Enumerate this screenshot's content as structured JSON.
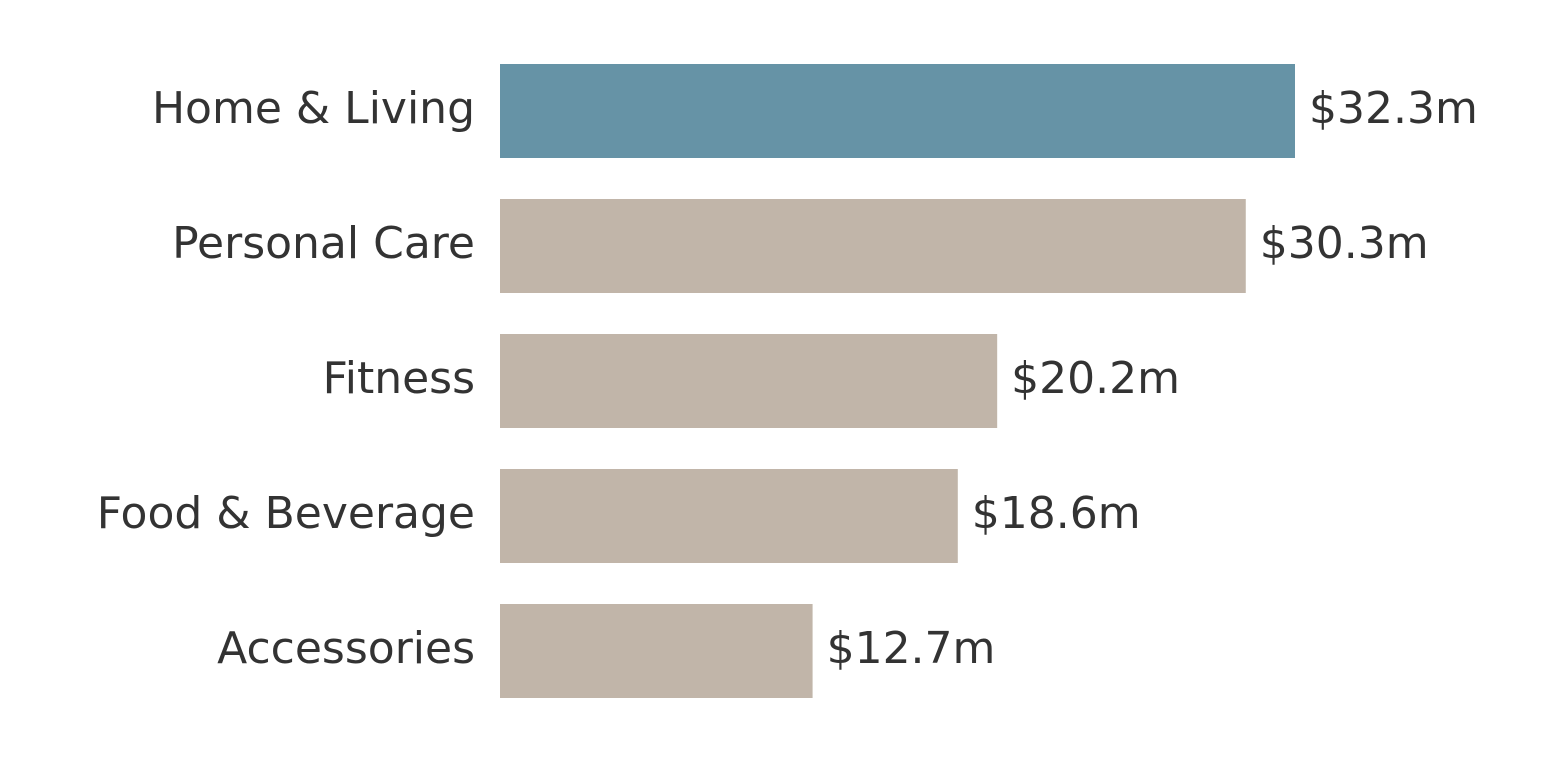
{
  "chart_data": {
    "type": "bar",
    "orientation": "horizontal",
    "categories": [
      "Home & Living",
      "Personal Care",
      "Fitness",
      "Food & Beverage",
      "Accessories"
    ],
    "values": [
      32.3,
      30.3,
      20.2,
      18.6,
      12.7
    ],
    "value_labels": [
      "$32.3m",
      "$30.3m",
      "$20.2m",
      "$18.6m",
      "$12.7m"
    ],
    "colors": [
      "#6693a6",
      "#c1b5a9",
      "#c1b5a9",
      "#c1b5a9",
      "#c1b5a9"
    ]
  }
}
